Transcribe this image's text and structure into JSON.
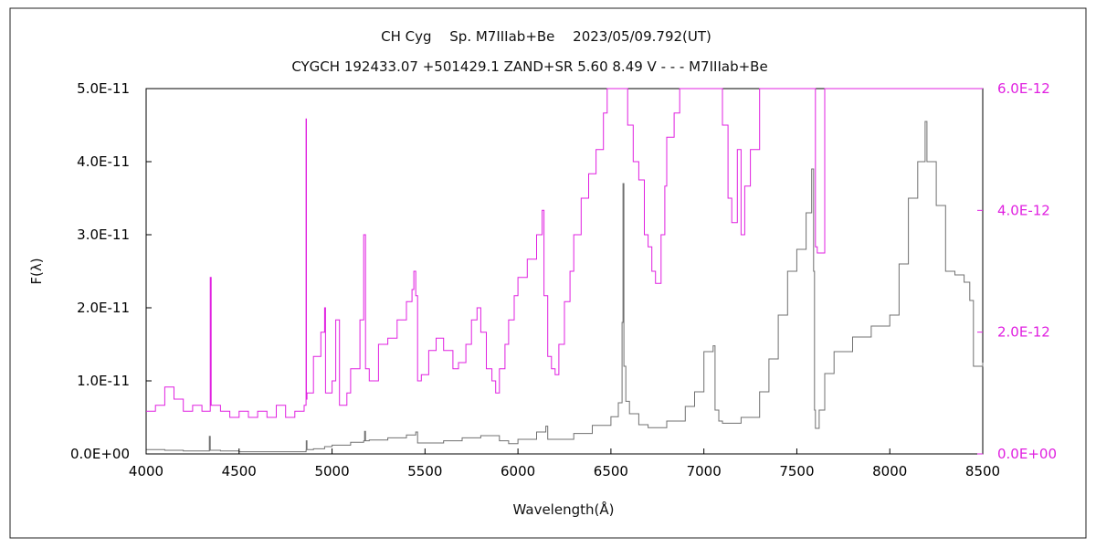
{
  "chart_data": {
    "type": "line",
    "title": "CH Cyg　 Sp. M7IIIab+Be　 2023/05/09.792(UT)",
    "subtitle": "CYGCH 192433.07 +501429.1 ZAND+SR 5.60 8.49 V - - - M7IIIab+Be",
    "xlabel": "Wavelength(Å)",
    "ylabel": "F(λ)",
    "xlim": [
      4000,
      8500
    ],
    "ylim_left": [
      0,
      5e-11
    ],
    "ylim_right": [
      0,
      6e-12
    ],
    "x_ticks": [
      "4000",
      "4500",
      "5000",
      "5500",
      "6000",
      "6500",
      "7000",
      "7500",
      "8000",
      "8500"
    ],
    "y_ticks_left": [
      "0.0E+00",
      "1.0E-11",
      "2.0E-11",
      "3.0E-11",
      "4.0E-11",
      "5.0E-11"
    ],
    "y_ticks_right": [
      "0.0E+00",
      "2.0E-12",
      "4.0E-12",
      "6.0E-12"
    ],
    "grid": false,
    "colors": {
      "left_axis": "#000000",
      "right_axis": "#e020e0",
      "series_gray": "#707070",
      "series_magenta": "#e020e0"
    },
    "series": [
      {
        "axis": "left",
        "color": "#707070",
        "x": [
          4000,
          4100,
          4200,
          4300,
          4340,
          4345,
          4400,
          4500,
          4600,
          4700,
          4800,
          4860,
          4861,
          4865,
          4900,
          4960,
          5000,
          5100,
          5170,
          5175,
          5180,
          5200,
          5300,
          5400,
          5450,
          5460,
          5500,
          5600,
          5700,
          5800,
          5900,
          5950,
          6000,
          6100,
          6150,
          6160,
          6200,
          6300,
          6400,
          6500,
          6540,
          6560,
          6565,
          6570,
          6580,
          6600,
          6650,
          6700,
          6800,
          6900,
          6950,
          7000,
          7050,
          7060,
          7080,
          7100,
          7200,
          7300,
          7350,
          7400,
          7450,
          7500,
          7550,
          7580,
          7590,
          7595,
          7600,
          7620,
          7650,
          7700,
          7800,
          7900,
          8000,
          8050,
          8100,
          8150,
          8190,
          8200,
          8250,
          8300,
          8350,
          8400,
          8430,
          8450,
          8500
        ],
        "values": [
          6e-13,
          5e-13,
          4e-13,
          4e-13,
          2.4e-12,
          5e-13,
          4e-13,
          3e-13,
          3e-13,
          3e-13,
          3e-13,
          5e-13,
          1.8e-12,
          6e-13,
          7e-13,
          1e-12,
          1.2e-12,
          1.6e-12,
          1.8e-12,
          3.1e-12,
          1.8e-12,
          1.9e-12,
          2.2e-12,
          2.6e-12,
          3e-12,
          1.5e-12,
          1.5e-12,
          1.8e-12,
          2.2e-12,
          2.5e-12,
          1.8e-12,
          1.4e-12,
          2e-12,
          3e-12,
          3.8e-12,
          2e-12,
          2e-12,
          2.8e-12,
          3.9e-12,
          5.1e-12,
          7e-12,
          1.8e-11,
          3.7e-11,
          1.2e-11,
          7.2e-12,
          5.5e-12,
          4e-12,
          3.6e-12,
          4.5e-12,
          6.5e-12,
          8.5e-12,
          1.4e-11,
          1.48e-11,
          6e-12,
          4.5e-12,
          4.2e-12,
          5e-12,
          8.5e-12,
          1.3e-11,
          1.9e-11,
          2.5e-11,
          2.8e-11,
          3.3e-11,
          3.9e-11,
          2.5e-11,
          6e-12,
          3.5e-12,
          6e-12,
          1.1e-11,
          1.4e-11,
          1.6e-11,
          1.75e-11,
          1.9e-11,
          2.6e-11,
          3.5e-11,
          4e-11,
          4.55e-11,
          4e-11,
          3.4e-11,
          2.5e-11,
          2.45e-11,
          2.35e-11,
          2.1e-11,
          1.2e-11,
          1.25e-11
        ]
      },
      {
        "axis": "right",
        "color": "#e020e0",
        "x": [
          4000,
          4050,
          4100,
          4150,
          4200,
          4250,
          4300,
          4340,
          4345,
          4350,
          4400,
          4450,
          4500,
          4550,
          4600,
          4650,
          4700,
          4750,
          4800,
          4850,
          4860,
          4862,
          4865,
          4900,
          4940,
          4960,
          4965,
          5000,
          5020,
          5040,
          5080,
          5100,
          5150,
          5170,
          5180,
          5200,
          5250,
          5300,
          5350,
          5400,
          5430,
          5440,
          5450,
          5460,
          5480,
          5520,
          5560,
          5600,
          5650,
          5680,
          5720,
          5750,
          5780,
          5800,
          5830,
          5860,
          5880,
          5900,
          5930,
          5950,
          5980,
          6000,
          6050,
          6100,
          6130,
          6140,
          6160,
          6180,
          6200,
          6220,
          6250,
          6280,
          6300,
          6340,
          6380,
          6420,
          6460,
          6480,
          6500,
          6530,
          6560,
          6580,
          6590,
          6620,
          6650,
          6680,
          6700,
          6720,
          6740,
          6770,
          6790,
          6800,
          6840,
          6870,
          6900,
          6950,
          7000,
          7050,
          7080,
          7100,
          7130,
          7150,
          7180,
          7200,
          7220,
          7250,
          7300,
          7400,
          7500,
          7580,
          7590,
          7600,
          7610,
          7650,
          8500
        ],
        "values": [
          7e-13,
          8e-13,
          1.1e-12,
          9e-13,
          7e-13,
          8e-13,
          7e-13,
          7e-13,
          2.9e-12,
          8e-13,
          7e-13,
          6e-13,
          7e-13,
          6e-13,
          7e-13,
          6e-13,
          8e-13,
          6e-13,
          7e-13,
          8e-13,
          5.5e-12,
          9e-13,
          1e-12,
          1.6e-12,
          2e-12,
          2.4e-12,
          1e-12,
          1.2e-12,
          2.2e-12,
          8e-13,
          1e-12,
          1.4e-12,
          2.2e-12,
          3.6e-12,
          1.4e-12,
          1.2e-12,
          1.8e-12,
          1.9e-12,
          2.2e-12,
          2.5e-12,
          2.7e-12,
          3e-12,
          2.6e-12,
          1.2e-12,
          1.3e-12,
          1.7e-12,
          1.9e-12,
          1.7e-12,
          1.4e-12,
          1.5e-12,
          1.8e-12,
          2.2e-12,
          2.4e-12,
          2e-12,
          1.4e-12,
          1.2e-12,
          1e-12,
          1.4e-12,
          1.8e-12,
          2.2e-12,
          2.6e-12,
          2.9e-12,
          3.2e-12,
          3.6e-12,
          4e-12,
          2.6e-12,
          1.6e-12,
          1.4e-12,
          1.3e-12,
          1.8e-12,
          2.5e-12,
          3e-12,
          3.6e-12,
          4.2e-12,
          4.6e-12,
          5e-12,
          5.6e-12,
          6e-12,
          6e-12,
          6e-12,
          6e-12,
          6e-12,
          5.4e-12,
          4.8e-12,
          4.5e-12,
          3.6e-12,
          3.4e-12,
          3e-12,
          2.8e-12,
          3.6e-12,
          4.4e-12,
          5.2e-12,
          5.6e-12,
          6e-12,
          6e-12,
          6e-12,
          6e-12,
          6e-12,
          6e-12,
          5.4e-12,
          4.2e-12,
          3.8e-12,
          5e-12,
          3.6e-12,
          4.4e-12,
          5e-12,
          6e-12,
          6e-12,
          6e-12,
          6e-12,
          6e-12,
          3.4e-12,
          3.3e-12,
          6e-12,
          6e-12
        ]
      }
    ]
  }
}
